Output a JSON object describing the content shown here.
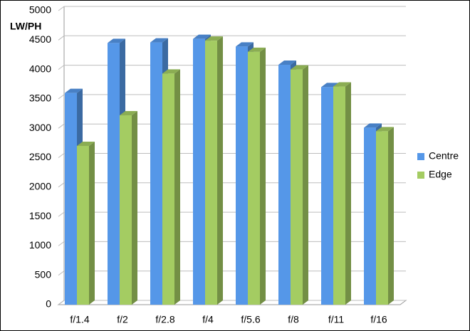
{
  "chart_data": {
    "type": "bar",
    "y_label": "LW/PH",
    "categories": [
      "f/1.4",
      "f/2",
      "f/2.8",
      "f/4",
      "f/5.6",
      "f/8",
      "f/11",
      "f/16"
    ],
    "series": [
      {
        "name": "Centre",
        "color": "#5597e8",
        "values": [
          3600,
          4450,
          4460,
          4520,
          4390,
          4080,
          3700,
          3010
        ]
      },
      {
        "name": "Edge",
        "color": "#a4cc62",
        "values": [
          2700,
          3220,
          3930,
          4490,
          4300,
          4000,
          3710,
          2950
        ]
      }
    ],
    "ylim": [
      0,
      5000
    ],
    "yticks": [
      0,
      500,
      1000,
      1500,
      2000,
      2500,
      3000,
      3500,
      4000,
      4500,
      5000
    ],
    "grid": true,
    "legend": "right"
  }
}
